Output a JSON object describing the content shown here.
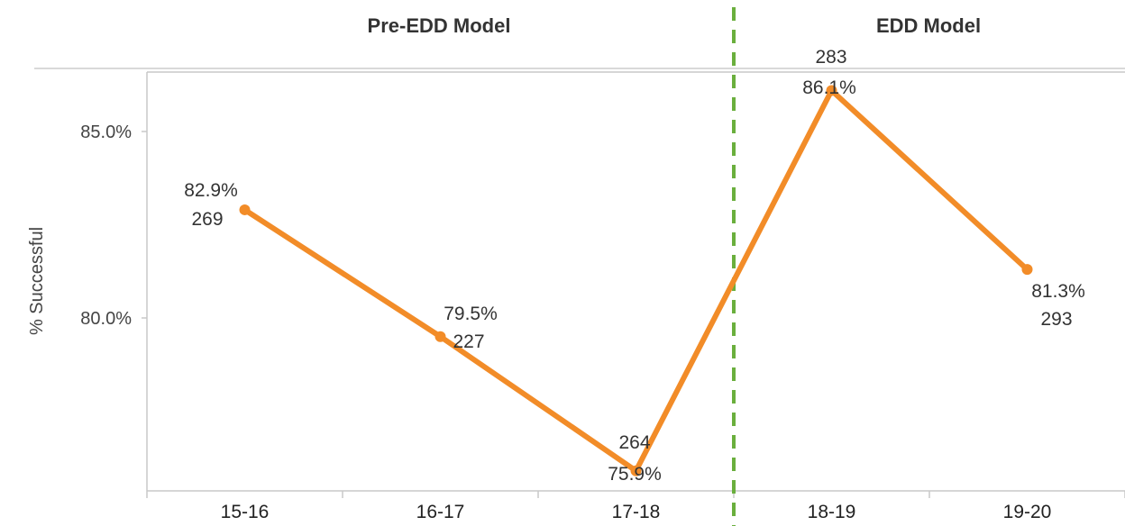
{
  "header": {
    "left_title": "Pre-EDD Model",
    "right_title": "EDD Model"
  },
  "colors": {
    "line": "#F28C28",
    "divider": "#6AAF3D",
    "frame": "#C8C8C8"
  },
  "chart_data": {
    "type": "line",
    "categories": [
      "15-16",
      "16-17",
      "17-18",
      "18-19",
      "19-20"
    ],
    "series": [
      {
        "values": [
          82.9,
          79.5,
          75.9,
          86.1,
          81.3
        ],
        "value_labels": [
          "82.9%",
          "79.5%",
          "75.9%",
          "86.1%",
          "81.3%"
        ],
        "counts": [
          "269",
          "227",
          "264",
          "283",
          "293"
        ]
      }
    ],
    "ylabel": "% Successful",
    "xlabel": "",
    "yticks": [
      "80.0%",
      "85.0%"
    ],
    "ytick_values": [
      80.0,
      85.0
    ],
    "ylim": [
      75.5,
      86.6
    ],
    "grid": false,
    "divider_between": [
      "17-18",
      "18-19"
    ]
  }
}
